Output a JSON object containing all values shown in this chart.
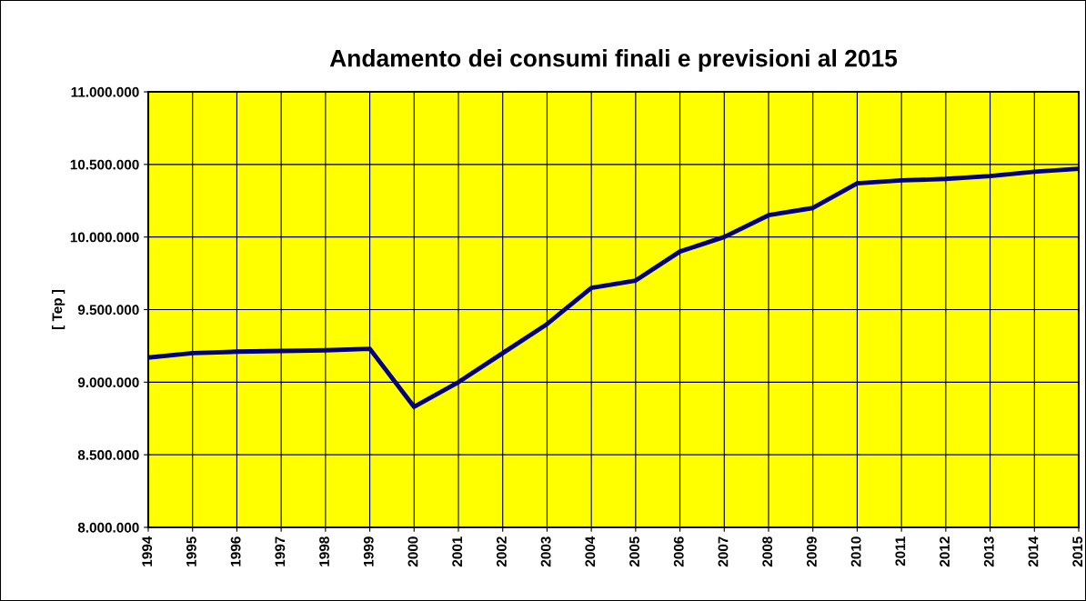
{
  "chart_data": {
    "type": "line",
    "title": "Andamento dei consumi finali e previsioni al 2015",
    "ylabel": "[ Tep ]",
    "x": [
      1994,
      1995,
      1996,
      1997,
      1998,
      1999,
      2000,
      2001,
      2002,
      2003,
      2004,
      2005,
      2006,
      2007,
      2008,
      2009,
      2010,
      2011,
      2012,
      2013,
      2014,
      2015
    ],
    "series": [
      {
        "color": "#000080",
        "values": [
          9170000,
          9200000,
          9210000,
          9215000,
          9220000,
          9230000,
          8830000,
          9000000,
          9200000,
          9400000,
          9650000,
          9700000,
          9900000,
          10000000,
          10150000,
          10200000,
          10370000,
          10390000,
          10400000,
          10420000,
          10450000,
          10470000
        ]
      }
    ],
    "xlim": [
      1994,
      2015
    ],
    "xticks": [
      1994,
      1995,
      1996,
      1997,
      1998,
      1999,
      2000,
      2001,
      2002,
      2003,
      2004,
      2005,
      2006,
      2007,
      2008,
      2009,
      2010,
      2011,
      2012,
      2013,
      2014,
      2015
    ],
    "ylim": [
      8000000,
      11000000
    ],
    "yticks": [
      {
        "value": 8000000,
        "label": "8.000.000"
      },
      {
        "value": 8500000,
        "label": "8.500.000"
      },
      {
        "value": 9000000,
        "label": "9.000.000"
      },
      {
        "value": 9500000,
        "label": "9.500.000"
      },
      {
        "value": 10000000,
        "label": "10.000.000"
      },
      {
        "value": 10500000,
        "label": "10.500.000"
      },
      {
        "value": 11000000,
        "label": "11.000.000"
      }
    ],
    "grid": true,
    "marker": "none",
    "line_style": "solid",
    "legend": false
  }
}
